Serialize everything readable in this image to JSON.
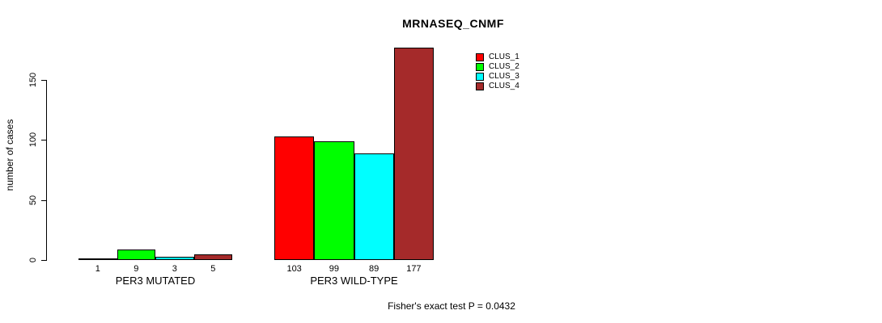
{
  "chart_data": {
    "type": "bar",
    "title": "MRNASEQ_CNMF",
    "ylabel": "number of cases",
    "xlabel": "",
    "ylim": [
      0,
      150
    ],
    "yticks": [
      0,
      50,
      100,
      150
    ],
    "grid": false,
    "value_labels_shown": true,
    "legend_position": "top-right-inside",
    "series_names": [
      "CLUS_1",
      "CLUS_2",
      "CLUS_3",
      "CLUS_4"
    ],
    "colors": [
      "#FF0000",
      "#00FF00",
      "#00FFFF",
      "#A52A2A"
    ],
    "bar_border_color": "#000000",
    "categories": [
      "PER3 MUTATED",
      "PER3 WILD-TYPE"
    ],
    "groups": [
      {
        "label": "PER3 MUTATED",
        "values": [
          1,
          9,
          3,
          5
        ]
      },
      {
        "label": "PER3 WILD-TYPE",
        "values": [
          103,
          99,
          89,
          177
        ]
      }
    ],
    "annotation": "Fisher's exact test P = 0.0432"
  }
}
